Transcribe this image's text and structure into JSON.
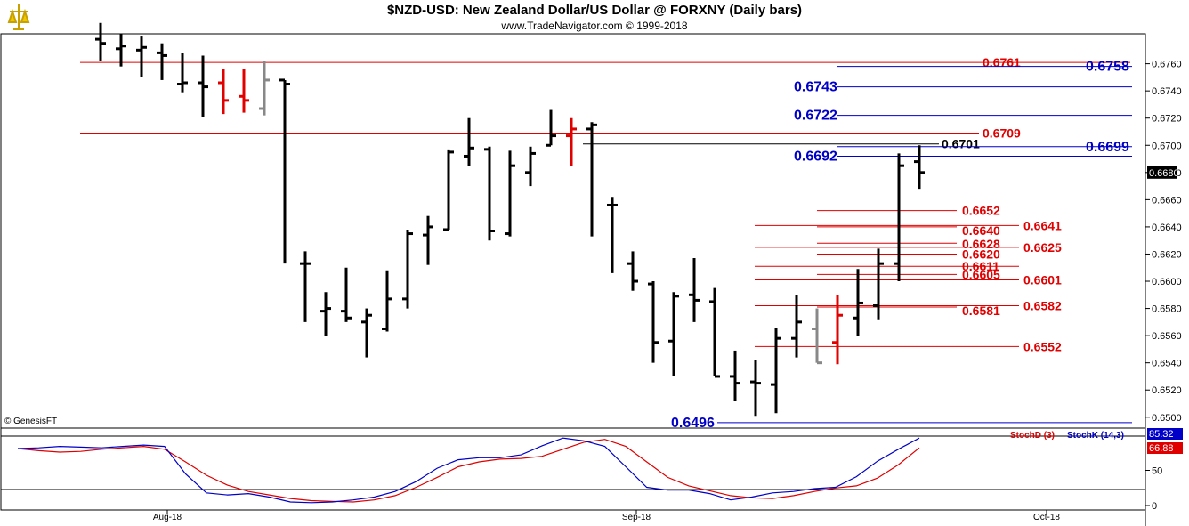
{
  "header": {
    "title": "$NZD-USD:  New Zealand Dollar/US Dollar @ FORXNY  (Daily bars)",
    "subtitle": "www.TradeNavigator.com © 1999-2018"
  },
  "footer": {
    "copyright": "© GenesisFT"
  },
  "colors": {
    "red": "#e00000",
    "blue": "#0000c8",
    "black": "#000000",
    "gray": "#888888",
    "stoch_d": "#e00000",
    "stoch_k": "#0000c8"
  },
  "chart_data": [
    {
      "type": "ohlc",
      "title": "$NZD-USD:  New Zealand Dollar/US Dollar @ FORXNY  (Daily bars)",
      "x_ticks": [
        "Aug-18",
        "Sep-18",
        "Oct-18"
      ],
      "y_ticks": [
        "0.6760",
        "0.6740",
        "0.6720",
        "0.6700",
        "0.6680",
        "0.6660",
        "0.6640",
        "0.6620",
        "0.6600",
        "0.6580",
        "0.6560",
        "0.6540",
        "0.6520",
        "0.6500"
      ],
      "ylim": [
        0.6492,
        0.6782
      ],
      "last_price": "0.6680",
      "bars": [
        {
          "o": 0.6778,
          "h": 0.679,
          "l": 0.6762,
          "c": 0.6775,
          "color": "black"
        },
        {
          "o": 0.6771,
          "h": 0.6782,
          "l": 0.6758,
          "c": 0.6773,
          "color": "black"
        },
        {
          "o": 0.677,
          "h": 0.678,
          "l": 0.675,
          "c": 0.6772,
          "color": "black"
        },
        {
          "o": 0.6768,
          "h": 0.6775,
          "l": 0.6748,
          "c": 0.6766,
          "color": "black"
        },
        {
          "o": 0.6745,
          "h": 0.6768,
          "l": 0.6739,
          "c": 0.6746,
          "color": "black"
        },
        {
          "o": 0.6746,
          "h": 0.6766,
          "l": 0.6721,
          "c": 0.6743,
          "color": "black"
        },
        {
          "o": 0.6746,
          "h": 0.6756,
          "l": 0.6723,
          "c": 0.6733,
          "color": "red"
        },
        {
          "o": 0.6736,
          "h": 0.6756,
          "l": 0.6724,
          "c": 0.6733,
          "color": "red"
        },
        {
          "o": 0.6727,
          "h": 0.6762,
          "l": 0.6722,
          "c": 0.6748,
          "color": "gray"
        },
        {
          "o": 0.6748,
          "h": 0.6748,
          "l": 0.6613,
          "c": 0.6745,
          "color": "black"
        },
        {
          "o": 0.6613,
          "h": 0.6622,
          "l": 0.657,
          "c": 0.6613,
          "color": "black"
        },
        {
          "o": 0.6578,
          "h": 0.6592,
          "l": 0.656,
          "c": 0.658,
          "color": "black"
        },
        {
          "o": 0.6578,
          "h": 0.661,
          "l": 0.657,
          "c": 0.6573,
          "color": "black"
        },
        {
          "o": 0.657,
          "h": 0.658,
          "l": 0.6544,
          "c": 0.6575,
          "color": "black"
        },
        {
          "o": 0.6565,
          "h": 0.6608,
          "l": 0.6563,
          "c": 0.6587,
          "color": "black"
        },
        {
          "o": 0.6587,
          "h": 0.6638,
          "l": 0.658,
          "c": 0.6635,
          "color": "black"
        },
        {
          "o": 0.6634,
          "h": 0.6648,
          "l": 0.6612,
          "c": 0.664,
          "color": "black"
        },
        {
          "o": 0.6638,
          "h": 0.6697,
          "l": 0.6638,
          "c": 0.6695,
          "color": "black"
        },
        {
          "o": 0.6692,
          "h": 0.672,
          "l": 0.6685,
          "c": 0.6698,
          "color": "black"
        },
        {
          "o": 0.6697,
          "h": 0.6699,
          "l": 0.663,
          "c": 0.6637,
          "color": "black"
        },
        {
          "o": 0.6635,
          "h": 0.6696,
          "l": 0.6633,
          "c": 0.6685,
          "color": "black"
        },
        {
          "o": 0.668,
          "h": 0.6699,
          "l": 0.667,
          "c": 0.6694,
          "color": "black"
        },
        {
          "o": 0.67,
          "h": 0.6726,
          "l": 0.67,
          "c": 0.6707,
          "color": "black"
        },
        {
          "o": 0.6707,
          "h": 0.672,
          "l": 0.6685,
          "c": 0.6712,
          "color": "red"
        },
        {
          "o": 0.6712,
          "h": 0.6717,
          "l": 0.6633,
          "c": 0.6715,
          "color": "black"
        },
        {
          "o": 0.6656,
          "h": 0.6662,
          "l": 0.6606,
          "c": 0.6656,
          "color": "black"
        },
        {
          "o": 0.6613,
          "h": 0.6622,
          "l": 0.6593,
          "c": 0.66,
          "color": "black"
        },
        {
          "o": 0.6598,
          "h": 0.66,
          "l": 0.654,
          "c": 0.6555,
          "color": "black"
        },
        {
          "o": 0.6556,
          "h": 0.6592,
          "l": 0.653,
          "c": 0.6589,
          "color": "black"
        },
        {
          "o": 0.659,
          "h": 0.6617,
          "l": 0.657,
          "c": 0.6586,
          "color": "black"
        },
        {
          "o": 0.6585,
          "h": 0.6595,
          "l": 0.653,
          "c": 0.653,
          "color": "black"
        },
        {
          "o": 0.653,
          "h": 0.6549,
          "l": 0.6512,
          "c": 0.6525,
          "color": "black"
        },
        {
          "o": 0.6526,
          "h": 0.6542,
          "l": 0.6501,
          "c": 0.6525,
          "color": "black"
        },
        {
          "o": 0.6524,
          "h": 0.6566,
          "l": 0.6503,
          "c": 0.6558,
          "color": "black"
        },
        {
          "o": 0.6558,
          "h": 0.659,
          "l": 0.6544,
          "c": 0.657,
          "color": "black"
        },
        {
          "o": 0.6565,
          "h": 0.658,
          "l": 0.654,
          "c": 0.654,
          "color": "gray"
        },
        {
          "o": 0.6555,
          "h": 0.659,
          "l": 0.6539,
          "c": 0.6575,
          "color": "red"
        },
        {
          "o": 0.6573,
          "h": 0.6609,
          "l": 0.656,
          "c": 0.6584,
          "color": "black"
        },
        {
          "o": 0.6582,
          "h": 0.6624,
          "l": 0.6572,
          "c": 0.6613,
          "color": "black"
        },
        {
          "o": 0.6613,
          "h": 0.6694,
          "l": 0.66,
          "c": 0.6685,
          "color": "black"
        },
        {
          "o": 0.6688,
          "h": 0.67,
          "l": 0.6668,
          "c": 0.668,
          "color": "black"
        }
      ],
      "levels": [
        {
          "label": "0.6761",
          "value": 0.6761,
          "color": "red"
        },
        {
          "label": "0.6758",
          "value": 0.6758,
          "color": "blue"
        },
        {
          "label": "0.6743",
          "value": 0.6743,
          "color": "blue"
        },
        {
          "label": "0.6722",
          "value": 0.6722,
          "color": "blue"
        },
        {
          "label": "0.6709",
          "value": 0.6709,
          "color": "red"
        },
        {
          "label": "0.6701",
          "value": 0.6701,
          "color": "black"
        },
        {
          "label": "0.6699",
          "value": 0.6699,
          "color": "blue"
        },
        {
          "label": "0.6692",
          "value": 0.6692,
          "color": "blue"
        },
        {
          "label": "0.6652",
          "value": 0.6652,
          "color": "red"
        },
        {
          "label": "0.6641",
          "value": 0.6641,
          "color": "red"
        },
        {
          "label": "0.6640",
          "value": 0.664,
          "color": "red"
        },
        {
          "label": "0.6628",
          "value": 0.6628,
          "color": "red"
        },
        {
          "label": "0.6625",
          "value": 0.6625,
          "color": "red"
        },
        {
          "label": "0.6620",
          "value": 0.662,
          "color": "red"
        },
        {
          "label": "0.6611",
          "value": 0.6611,
          "color": "red"
        },
        {
          "label": "0.6605",
          "value": 0.6605,
          "color": "red"
        },
        {
          "label": "0.6601",
          "value": 0.6601,
          "color": "red"
        },
        {
          "label": "0.6582",
          "value": 0.6582,
          "color": "red"
        },
        {
          "label": "0.6581",
          "value": 0.6581,
          "color": "red"
        },
        {
          "label": "0.6552",
          "value": 0.6552,
          "color": "red"
        },
        {
          "label": "0.6496",
          "value": 0.6496,
          "color": "blue"
        }
      ]
    },
    {
      "type": "line",
      "series": [
        {
          "name": "StochD (3)",
          "color": "red",
          "values": [
            81,
            78,
            76,
            77,
            80,
            82,
            84,
            80,
            62,
            43,
            29,
            20,
            15,
            10,
            7,
            6,
            5,
            8,
            14,
            26,
            40,
            55,
            62,
            66,
            67,
            70,
            80,
            90,
            94,
            84,
            62,
            40,
            28,
            21,
            14,
            11,
            10,
            14,
            20,
            25,
            28,
            39,
            58,
            82
          ]
        },
        {
          "name": "StochK (14,3)",
          "color": "blue",
          "values": [
            81,
            82,
            84,
            83,
            82,
            84,
            86,
            84,
            45,
            18,
            15,
            17,
            12,
            5,
            4,
            5,
            8,
            12,
            20,
            34,
            53,
            65,
            68,
            68,
            72,
            85,
            96,
            92,
            84,
            55,
            26,
            22,
            22,
            17,
            8,
            12,
            18,
            20,
            24,
            26,
            41,
            63,
            80,
            96
          ]
        }
      ],
      "y_ticks": [
        "50",
        "0"
      ],
      "last_values": [
        "85.32",
        "66.88"
      ],
      "ylim": [
        0,
        100
      ]
    }
  ]
}
